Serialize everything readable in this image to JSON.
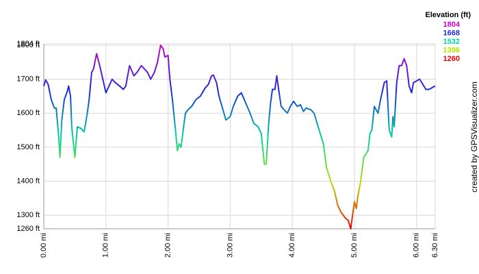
{
  "chart_data": {
    "type": "line",
    "x": [
      0.0,
      0.03,
      0.07,
      0.12,
      0.17,
      0.2,
      0.24,
      0.26,
      0.29,
      0.33,
      0.38,
      0.4,
      0.43,
      0.45,
      0.5,
      0.54,
      0.6,
      0.65,
      0.7,
      0.73,
      0.77,
      0.8,
      0.85,
      0.9,
      0.95,
      1.0,
      1.05,
      1.1,
      1.15,
      1.22,
      1.28,
      1.32,
      1.38,
      1.45,
      1.5,
      1.57,
      1.62,
      1.67,
      1.72,
      1.78,
      1.83,
      1.88,
      1.92,
      1.95,
      2.0,
      2.03,
      2.07,
      2.12,
      2.15,
      2.18,
      2.21,
      2.25,
      2.28,
      2.32,
      2.38,
      2.45,
      2.52,
      2.6,
      2.65,
      2.7,
      2.73,
      2.78,
      2.82,
      2.9,
      2.93,
      3.0,
      3.05,
      3.12,
      3.18,
      3.25,
      3.32,
      3.38,
      3.45,
      3.5,
      3.55,
      3.58,
      3.62,
      3.65,
      3.68,
      3.72,
      3.75,
      3.78,
      3.82,
      3.87,
      3.92,
      3.97,
      4.02,
      4.08,
      4.13,
      4.18,
      4.22,
      4.3,
      4.35,
      4.4,
      4.45,
      4.5,
      4.55,
      4.62,
      4.68,
      4.73,
      4.78,
      4.82,
      4.86,
      4.9,
      4.94,
      4.97,
      5.0,
      5.03,
      5.05,
      5.1,
      5.15,
      5.22,
      5.25,
      5.28,
      5.32,
      5.38,
      5.42,
      5.48,
      5.52,
      5.56,
      5.6,
      5.62,
      5.64,
      5.68,
      5.72,
      5.76,
      5.8,
      5.84,
      5.88,
      5.92,
      5.95,
      6.0,
      6.05,
      6.1,
      6.15,
      6.2,
      6.25,
      6.3
    ],
    "values": [
      1680,
      1698,
      1685,
      1640,
      1615,
      1615,
      1530,
      1470,
      1580,
      1640,
      1665,
      1680,
      1650,
      1560,
      1470,
      1560,
      1555,
      1545,
      1600,
      1640,
      1720,
      1730,
      1775,
      1740,
      1700,
      1660,
      1680,
      1700,
      1690,
      1680,
      1670,
      1680,
      1740,
      1710,
      1720,
      1740,
      1730,
      1720,
      1700,
      1720,
      1750,
      1800,
      1790,
      1765,
      1770,
      1700,
      1640,
      1550,
      1490,
      1510,
      1500,
      1560,
      1600,
      1610,
      1620,
      1640,
      1650,
      1675,
      1685,
      1710,
      1712,
      1690,
      1650,
      1600,
      1580,
      1590,
      1620,
      1650,
      1660,
      1630,
      1600,
      1570,
      1560,
      1540,
      1450,
      1450,
      1570,
      1630,
      1670,
      1670,
      1710,
      1670,
      1620,
      1610,
      1600,
      1620,
      1635,
      1620,
      1625,
      1605,
      1615,
      1610,
      1600,
      1570,
      1540,
      1510,
      1440,
      1400,
      1370,
      1330,
      1310,
      1300,
      1290,
      1285,
      1260,
      1300,
      1340,
      1320,
      1350,
      1400,
      1470,
      1490,
      1540,
      1550,
      1620,
      1600,
      1640,
      1690,
      1695,
      1550,
      1530,
      1590,
      1560,
      1690,
      1740,
      1740,
      1760,
      1740,
      1680,
      1660,
      1690,
      1695,
      1700,
      1685,
      1670,
      1670,
      1675,
      1680
    ],
    "xlim": [
      0,
      6.3
    ],
    "xticks": [
      {
        "value": 0,
        "label": "0.00 mi"
      },
      {
        "value": 1,
        "label": "1.00 mi"
      },
      {
        "value": 2,
        "label": "2.00 mi"
      },
      {
        "value": 3,
        "label": "3.00 mi"
      },
      {
        "value": 4,
        "label": "4.00 mi"
      },
      {
        "value": 5,
        "label": "5.00 mi"
      },
      {
        "value": 6,
        "label": "6.00 mi"
      },
      {
        "value": 6.3,
        "label": "6.30 mi"
      }
    ],
    "ylim": [
      1260,
      1804
    ],
    "yticks": [
      {
        "value": 1260,
        "label": "1260 ft"
      },
      {
        "value": 1300,
        "label": "1300 ft"
      },
      {
        "value": 1400,
        "label": "1400 ft"
      },
      {
        "value": 1500,
        "label": "1500 ft"
      },
      {
        "value": 1600,
        "label": "1600 ft"
      },
      {
        "value": 1700,
        "label": "1700 ft"
      },
      {
        "value": 1800,
        "label": "1800 ft"
      },
      {
        "value": 1804,
        "label": "1804 ft"
      }
    ],
    "grid": true,
    "legend": {
      "title": "Elevation (ft)",
      "entries": [
        {
          "value": 1804,
          "color": "#cc00cc"
        },
        {
          "value": 1668,
          "color": "#1a2ad8"
        },
        {
          "value": 1532,
          "color": "#00d4a0"
        },
        {
          "value": 1396,
          "color": "#b4e000"
        },
        {
          "value": 1260,
          "color": "#ee0000"
        }
      ]
    },
    "credit": "created by GPSVisualizer.com"
  }
}
